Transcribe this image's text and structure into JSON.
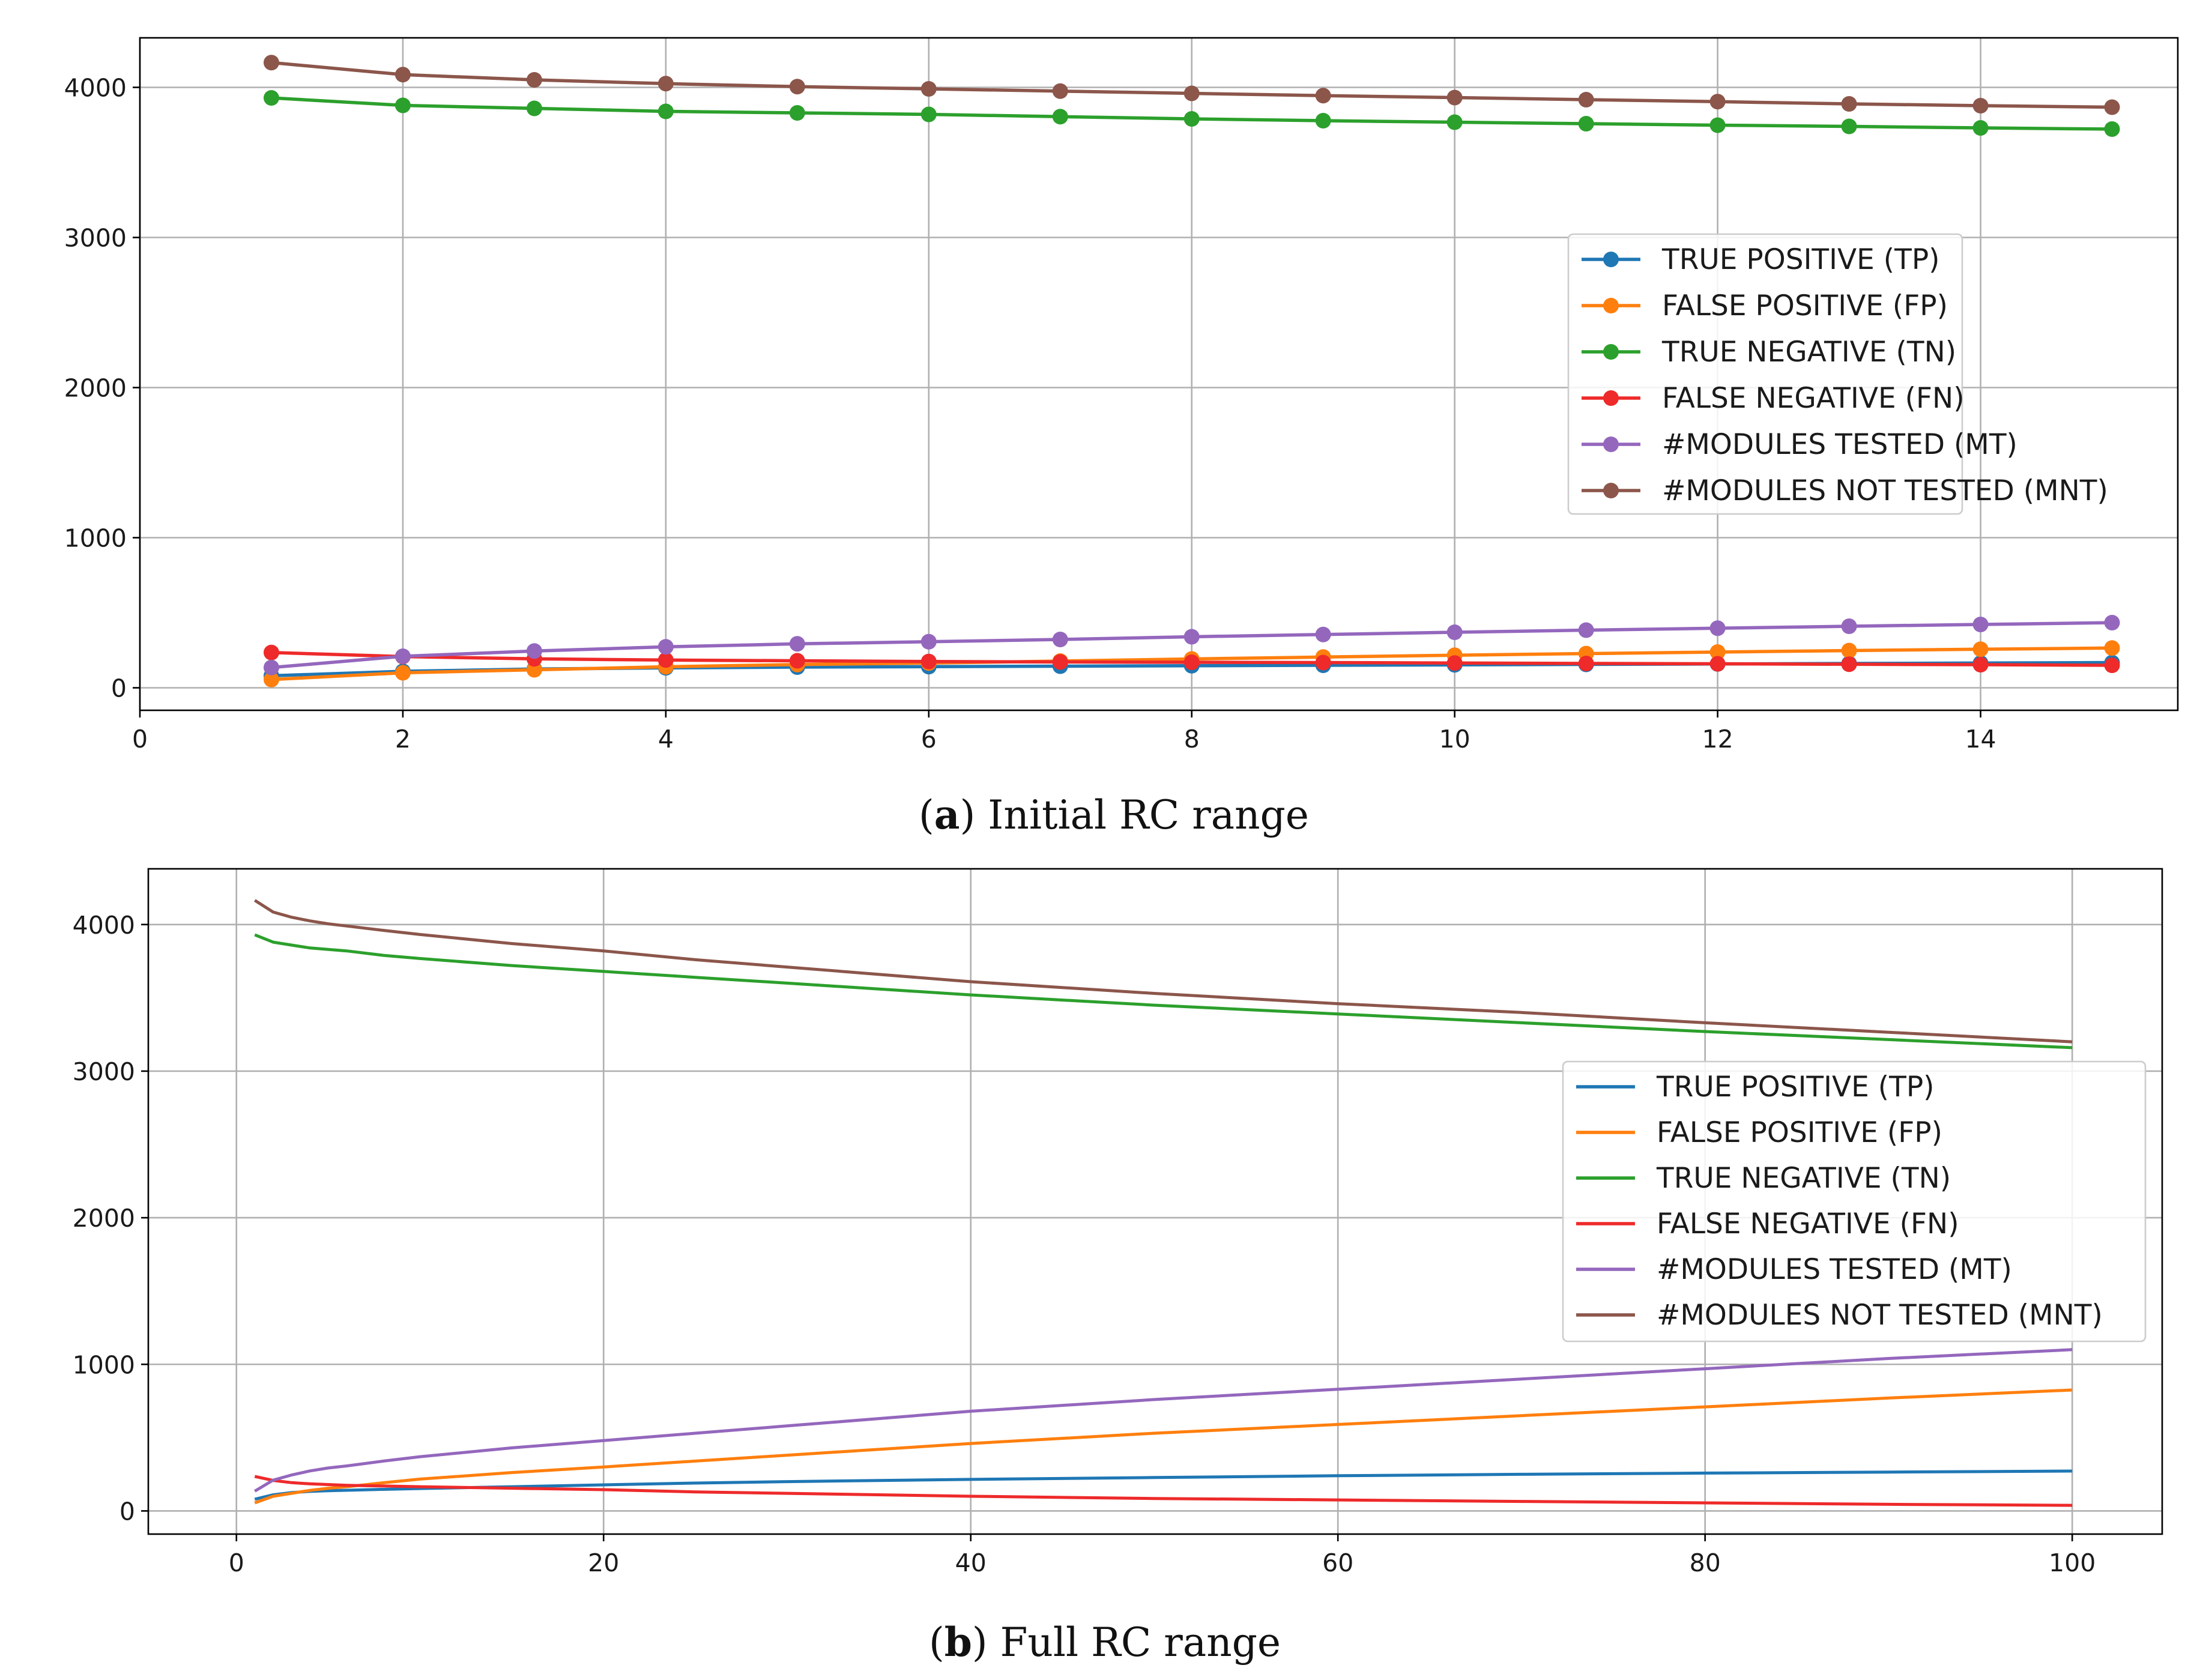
{
  "colors": {
    "tp": "#1f77b4",
    "fp": "#ff7f0e",
    "tn": "#2ca02c",
    "fn": "#ee2a2a",
    "mt": "#9467bd",
    "mnt": "#8c564b"
  },
  "chart_data": [
    {
      "type": "line",
      "markers": true,
      "caption_letter": "a",
      "caption_text": "Initial RC range",
      "xlim": [
        0,
        15.5
      ],
      "ylim": [
        -150,
        4330
      ],
      "xticks": [
        0,
        2,
        4,
        6,
        8,
        10,
        12,
        14
      ],
      "xtick_labels": [
        "0",
        "2",
        "4",
        "6",
        "8",
        "10",
        "12",
        "14"
      ],
      "yticks": [
        0,
        1000,
        2000,
        3000,
        4000
      ],
      "ytick_labels": [
        "0",
        "1000",
        "2000",
        "3000",
        "4000"
      ],
      "grid": true,
      "legend_position": "right",
      "x": [
        1,
        2,
        3,
        4,
        5,
        6,
        7,
        8,
        9,
        10,
        11,
        12,
        13,
        14,
        15
      ],
      "series": [
        {
          "key": "tp",
          "name": "TRUE POSITIVE (TP)",
          "values": [
            80,
            110,
            125,
            133,
            138,
            141,
            144,
            147,
            150,
            153,
            156,
            159,
            162,
            165,
            168
          ]
        },
        {
          "key": "fp",
          "name": "FALSE POSITIVE (FP)",
          "values": [
            55,
            100,
            120,
            140,
            155,
            165,
            178,
            192,
            205,
            217,
            228,
            238,
            248,
            257,
            265
          ]
        },
        {
          "key": "tn",
          "name": "TRUE NEGATIVE (TN)",
          "values": [
            3930,
            3880,
            3860,
            3840,
            3830,
            3820,
            3805,
            3790,
            3778,
            3768,
            3758,
            3748,
            3740,
            3730,
            3722
          ]
        },
        {
          "key": "fn",
          "name": "FALSE NEGATIVE (FN)",
          "values": [
            235,
            208,
            193,
            185,
            180,
            175,
            172,
            170,
            168,
            165,
            162,
            160,
            157,
            154,
            150
          ]
        },
        {
          "key": "mt",
          "name": "#MODULES TESTED (MT)",
          "values": [
            135,
            210,
            245,
            273,
            293,
            307,
            322,
            340,
            355,
            370,
            384,
            397,
            410,
            422,
            434
          ]
        },
        {
          "key": "mnt",
          "name": "#MODULES NOT TESTED (MNT)",
          "values": [
            4165,
            4085,
            4050,
            4025,
            4005,
            3990,
            3975,
            3960,
            3945,
            3932,
            3918,
            3905,
            3890,
            3878,
            3868
          ]
        }
      ]
    },
    {
      "type": "line",
      "markers": false,
      "caption_letter": "b",
      "caption_text": "Full RC range",
      "xlim": [
        -4.8,
        104.9
      ],
      "ylim": [
        -158,
        4380
      ],
      "xticks": [
        0,
        20,
        40,
        60,
        80,
        100
      ],
      "xtick_labels": [
        "0",
        "20",
        "40",
        "60",
        "80",
        "100"
      ],
      "yticks": [
        0,
        1000,
        2000,
        3000,
        4000
      ],
      "ytick_labels": [
        "0",
        "1000",
        "2000",
        "3000",
        "4000"
      ],
      "grid": true,
      "legend_position": "right",
      "x": [
        1,
        2,
        3,
        4,
        5,
        6,
        8,
        10,
        15,
        20,
        25,
        30,
        40,
        50,
        60,
        70,
        80,
        90,
        100
      ],
      "series": [
        {
          "key": "tp",
          "name": "TRUE POSITIVE (TP)",
          "values": [
            80,
            110,
            125,
            133,
            138,
            141,
            147,
            153,
            165,
            178,
            190,
            200,
            215,
            228,
            240,
            250,
            258,
            265,
            272
          ]
        },
        {
          "key": "fp",
          "name": "FALSE POSITIVE (FP)",
          "values": [
            55,
            100,
            120,
            140,
            155,
            165,
            192,
            217,
            262,
            300,
            340,
            380,
            460,
            530,
            590,
            650,
            710,
            770,
            825
          ]
        },
        {
          "key": "tn",
          "name": "TRUE NEGATIVE (TN)",
          "values": [
            3930,
            3880,
            3860,
            3840,
            3830,
            3820,
            3790,
            3768,
            3720,
            3680,
            3640,
            3600,
            3520,
            3450,
            3390,
            3330,
            3270,
            3215,
            3160
          ]
        },
        {
          "key": "fn",
          "name": "FALSE NEGATIVE (FN)",
          "values": [
            235,
            208,
            193,
            185,
            180,
            175,
            170,
            165,
            155,
            145,
            130,
            120,
            100,
            85,
            75,
            65,
            55,
            45,
            38
          ]
        },
        {
          "key": "mt",
          "name": "#MODULES TESTED (MT)",
          "values": [
            135,
            210,
            245,
            273,
            293,
            307,
            340,
            370,
            430,
            480,
            530,
            580,
            680,
            760,
            830,
            900,
            970,
            1040,
            1100
          ]
        },
        {
          "key": "mnt",
          "name": "#MODULES NOT TESTED (MNT)",
          "values": [
            4165,
            4085,
            4050,
            4025,
            4005,
            3990,
            3960,
            3932,
            3870,
            3820,
            3760,
            3710,
            3610,
            3530,
            3460,
            3400,
            3330,
            3265,
            3200
          ]
        }
      ]
    }
  ]
}
